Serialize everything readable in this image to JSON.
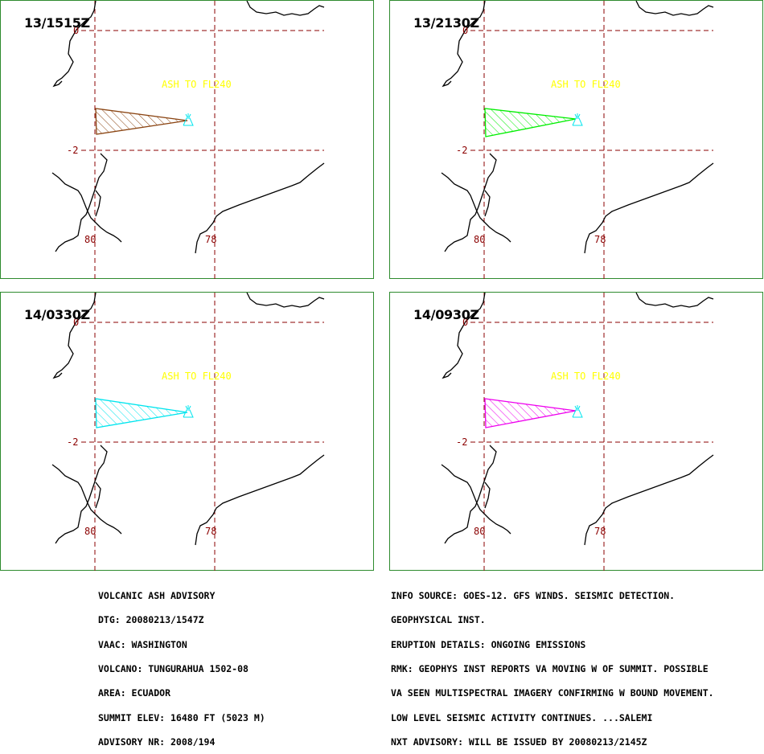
{
  "map": {
    "lat_labels": [
      "0",
      "-2"
    ],
    "lon_labels": [
      "80",
      "78"
    ],
    "ash_label": "ASH TO FL240",
    "volcano_icon": "volcano-icon",
    "coast_color": "#000000",
    "grid_color": "#8b0000",
    "label_color": "#ffff00",
    "volcano_color": "#00e5ee"
  },
  "panels": [
    {
      "time": "13/1515Z",
      "color": "#8b4513"
    },
    {
      "time": "13/2130Z",
      "color": "#00ee00"
    },
    {
      "time": "14/0330Z",
      "color": "#00e5ee"
    },
    {
      "time": "14/0930Z",
      "color": "#ee00ee"
    }
  ],
  "advisory_left": [
    "VOLCANIC ASH ADVISORY",
    "DTG: 20080213/1547Z",
    "VAAC: WASHINGTON",
    "VOLCANO: TUNGURAHUA 1502-08",
    "AREA: ECUADOR",
    "SUMMIT ELEV: 16480 FT (5023 M)",
    "ADVISORY NR: 2008/194"
  ],
  "advisory_right": [
    "INFO SOURCE: GOES-12. GFS WINDS. SEISMIC DETECTION.",
    "GEOPHYSICAL INST.",
    "ERUPTION DETAILS: ONGOING EMISSIONS",
    "RMK: GEOPHYS INST REPORTS VA MOVING W OF SUMMIT. POSSIBLE",
    "VA SEEN MULTISPECTRAL IMAGERY CONFIRMING W BOUND MOVEMENT.",
    "LOW LEVEL SEISMIC ACTIVITY CONTINUES. ...SALEMI",
    "NXT ADVISORY: WILL BE ISSUED BY 20080213/2145Z"
  ]
}
